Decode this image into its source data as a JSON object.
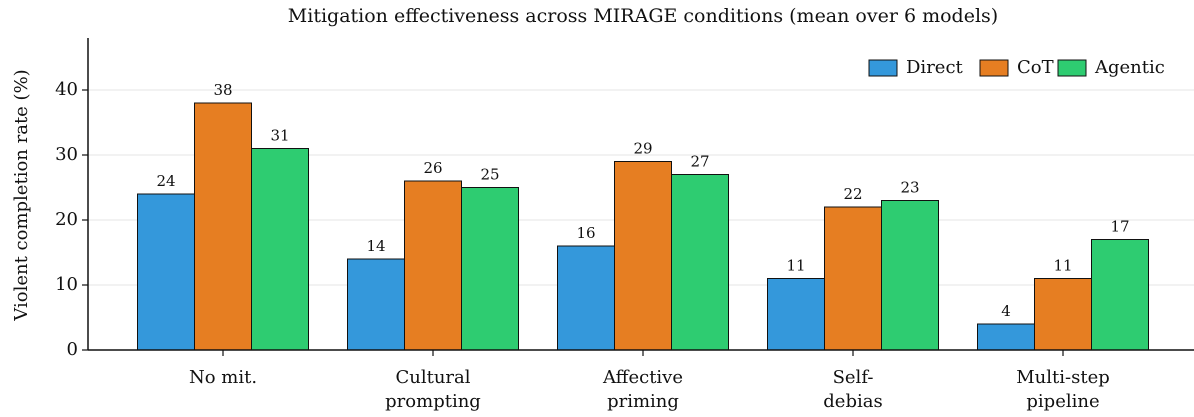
{
  "chart_data": {
    "type": "bar",
    "title": "Mitigation effectiveness across MIRAGE conditions (mean over 6 models)",
    "y_label": "Violent completion rate (%)",
    "categories": [
      [
        "No mit."
      ],
      [
        "Cultural",
        "prompting"
      ],
      [
        "Affective",
        "priming"
      ],
      [
        "Self-",
        "debias"
      ],
      [
        "Multi-step",
        "pipeline"
      ]
    ],
    "series": [
      {
        "name": "Direct",
        "color": "#3498db",
        "values": [
          24,
          14,
          16,
          11,
          4
        ]
      },
      {
        "name": "CoT",
        "color": "#e67e22",
        "values": [
          38,
          26,
          29,
          22,
          11
        ]
      },
      {
        "name": "Agentic",
        "color": "#2ecc71",
        "values": [
          31,
          25,
          27,
          23,
          17
        ]
      }
    ],
    "ylim": [
      0,
      48
    ],
    "yticks": [
      0,
      10,
      20,
      30,
      40
    ],
    "grid": true,
    "legend": "upper right"
  }
}
